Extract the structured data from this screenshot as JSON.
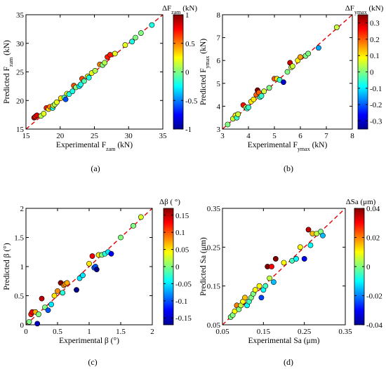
{
  "colorscale": [
    "#00008f",
    "#0000ff",
    "#0080ff",
    "#00ffff",
    "#80ff80",
    "#ffff00",
    "#ff8000",
    "#ff0000",
    "#800000"
  ],
  "chart_data": [
    {
      "type": "scatter",
      "panel_label": "(a)",
      "xlabel": "Experimental  F_zam (kN)",
      "ylabel": "Predicted  F_zam (kN)",
      "xlim": [
        15,
        35
      ],
      "ylim": [
        15,
        35
      ],
      "xticks": [
        "15",
        "20",
        "25",
        "30",
        "35"
      ],
      "yticks": [
        "15",
        "20",
        "25",
        "30",
        "35"
      ],
      "colorbar": {
        "title": "ΔF_zam (kN)",
        "range": [
          -1,
          1
        ],
        "ticks": [
          "-1",
          "-0.5",
          "0",
          "0.5",
          "1"
        ]
      },
      "diagonal": true,
      "x": [
        16.2,
        16.4,
        16.6,
        17.2,
        17.6,
        18.0,
        18.3,
        18.5,
        18.9,
        19.0,
        19.2,
        19.5,
        20.1,
        20.6,
        20.8,
        21.0,
        21.3,
        21.8,
        22.0,
        22.3,
        22.8,
        23.0,
        23.2,
        23.5,
        24.0,
        24.2,
        24.6,
        25.1,
        25.8,
        26.2,
        26.5,
        26.9,
        27.3,
        28.0,
        29.5,
        30.5,
        31.0,
        31.8,
        33.4
      ],
      "y": [
        17.0,
        17.2,
        17.4,
        17.3,
        17.7,
        18.7,
        18.5,
        18.9,
        18.7,
        19.1,
        19.3,
        19.7,
        20.4,
        20.5,
        20.2,
        21.2,
        21.1,
        21.6,
        22.6,
        22.3,
        22.5,
        22.8,
        23.8,
        23.4,
        24.2,
        24.0,
        24.8,
        25.2,
        26.3,
        26.2,
        26.6,
        27.6,
        28.0,
        28.2,
        29.7,
        30.3,
        31.0,
        31.8,
        33.2
      ],
      "c": [
        0.9,
        0.7,
        0.8,
        0.1,
        0.2,
        0.7,
        0.3,
        0.5,
        -0.2,
        0.2,
        0.1,
        0.2,
        0.3,
        -0.1,
        -0.6,
        0.2,
        -0.2,
        -0.2,
        0.6,
        0.0,
        -0.3,
        -0.2,
        0.6,
        -0.1,
        0.2,
        -0.2,
        0.2,
        0.1,
        0.5,
        0.0,
        0.1,
        0.7,
        0.7,
        0.2,
        0.2,
        -0.2,
        0.0,
        0.0,
        -0.2
      ]
    },
    {
      "type": "scatter",
      "panel_label": "(b)",
      "xlabel": "Experimental  F_ymax (kN)",
      "ylabel": "Predicted  F_ymax (kN)",
      "xlim": [
        3,
        8
      ],
      "ylim": [
        3,
        8
      ],
      "xticks": [
        "3",
        "4",
        "5",
        "6",
        "7",
        "8"
      ],
      "yticks": [
        "3",
        "4",
        "5",
        "6",
        "7",
        "8"
      ],
      "colorbar": {
        "title": "ΔF_ymax (kN)",
        "range": [
          -0.35,
          0.35
        ],
        "ticks": [
          "-0.3",
          "-0.2",
          "-0.1",
          "0",
          "0.1",
          "0.2",
          "0.3"
        ]
      },
      "diagonal": true,
      "x": [
        3.2,
        3.4,
        3.5,
        3.55,
        3.6,
        3.8,
        3.9,
        3.95,
        4.0,
        4.1,
        4.2,
        4.3,
        4.35,
        4.4,
        4.45,
        4.5,
        4.6,
        4.8,
        5.0,
        5.1,
        5.2,
        5.35,
        5.5,
        5.6,
        5.65,
        5.7,
        5.9,
        6.0,
        6.2,
        6.3,
        6.7,
        7.4
      ],
      "y": [
        3.2,
        3.45,
        3.6,
        3.5,
        3.65,
        4.05,
        3.95,
        3.9,
        3.95,
        4.2,
        4.3,
        4.5,
        4.7,
        4.6,
        4.4,
        4.45,
        4.65,
        4.8,
        5.2,
        5.2,
        5.15,
        5.05,
        5.5,
        5.9,
        5.7,
        5.75,
        6.0,
        6.15,
        6.2,
        6.3,
        6.55,
        7.45
      ],
      "c": [
        0.0,
        0.05,
        0.1,
        -0.05,
        0.05,
        0.25,
        0.05,
        -0.05,
        -0.05,
        0.1,
        0.1,
        0.2,
        0.35,
        0.2,
        -0.05,
        -0.05,
        0.05,
        0.0,
        0.2,
        0.1,
        -0.05,
        -0.3,
        0.0,
        0.3,
        0.05,
        0.05,
        0.1,
        0.15,
        0.0,
        0.0,
        -0.15,
        0.05
      ]
    },
    {
      "type": "scatter",
      "panel_label": "(c)",
      "xlabel": "Experimental β (°)",
      "ylabel": "Predicted β (°)",
      "xlim": [
        0,
        2
      ],
      "ylim": [
        0,
        2
      ],
      "xticks": [
        "0",
        "0.5",
        "1",
        "1.5",
        "2"
      ],
      "yticks": [
        "0",
        "0.5",
        "1",
        "1.5",
        "2"
      ],
      "colorbar": {
        "title": "Δβ ( °)",
        "range": [
          -0.17,
          0.17
        ],
        "ticks": [
          "-0.15",
          "-0.1",
          "-0.05",
          "0",
          "0.05",
          "0.1",
          "0.15"
        ]
      },
      "diagonal": true,
      "x": [
        0.05,
        0.08,
        0.1,
        0.15,
        0.18,
        0.2,
        0.25,
        0.3,
        0.35,
        0.4,
        0.45,
        0.5,
        0.55,
        0.58,
        0.6,
        0.62,
        0.65,
        0.8,
        0.85,
        0.9,
        1.0,
        1.05,
        1.08,
        1.1,
        1.12,
        1.15,
        1.2,
        1.25,
        1.3,
        1.35,
        1.5,
        1.7,
        1.82
      ],
      "y": [
        0.05,
        0.18,
        0.22,
        0.22,
        0.02,
        0.18,
        0.45,
        0.3,
        0.25,
        0.35,
        0.5,
        0.58,
        0.72,
        0.55,
        0.68,
        0.7,
        0.72,
        0.6,
        0.8,
        0.85,
        1.05,
        1.18,
        0.98,
        1.0,
        0.95,
        1.2,
        1.2,
        1.22,
        1.25,
        1.22,
        1.5,
        1.7,
        1.85
      ],
      "c": [
        0.0,
        0.12,
        0.13,
        0.07,
        -0.15,
        0.0,
        0.15,
        0.0,
        -0.1,
        -0.05,
        0.05,
        0.08,
        0.17,
        -0.03,
        0.08,
        0.08,
        0.07,
        -0.2,
        -0.05,
        -0.05,
        0.05,
        0.13,
        -0.1,
        -0.1,
        -0.17,
        0.05,
        0.0,
        -0.03,
        -0.05,
        -0.13,
        0.0,
        0.0,
        0.03
      ]
    },
    {
      "type": "scatter",
      "panel_label": "(d)",
      "xlabel": "Experimental Sa (μm)",
      "ylabel": "Predicted Sa (μm)",
      "xlim": [
        0.05,
        0.35
      ],
      "ylim": [
        0.05,
        0.35
      ],
      "xticks": [
        "0.05",
        "0.15",
        "0.25",
        "0.35"
      ],
      "yticks": [
        "0.05",
        "0.15",
        "0.25",
        "0.35"
      ],
      "colorbar": {
        "title": "ΔSa (μm)",
        "range": [
          -0.04,
          0.04
        ],
        "ticks": [
          "-0.04",
          "-0.02",
          "0",
          "0.02",
          "0.04"
        ]
      },
      "diagonal": true,
      "x": [
        0.07,
        0.075,
        0.08,
        0.085,
        0.09,
        0.095,
        0.1,
        0.105,
        0.11,
        0.115,
        0.12,
        0.125,
        0.13,
        0.14,
        0.145,
        0.15,
        0.155,
        0.16,
        0.165,
        0.17,
        0.175,
        0.18,
        0.2,
        0.22,
        0.23,
        0.24,
        0.25,
        0.26,
        0.265,
        0.27,
        0.28,
        0.29,
        0.295
      ],
      "y": [
        0.07,
        0.075,
        0.085,
        0.1,
        0.09,
        0.1,
        0.11,
        0.12,
        0.1,
        0.11,
        0.12,
        0.13,
        0.14,
        0.15,
        0.12,
        0.14,
        0.15,
        0.2,
        0.17,
        0.2,
        0.16,
        0.22,
        0.21,
        0.215,
        0.22,
        0.25,
        0.22,
        0.295,
        0.255,
        0.285,
        0.285,
        0.29,
        0.28
      ],
      "c": [
        0.0,
        0.0,
        0.01,
        0.02,
        0.0,
        0.005,
        0.01,
        0.015,
        -0.01,
        -0.005,
        0.0,
        0.0,
        0.01,
        0.01,
        -0.025,
        -0.01,
        -0.005,
        0.04,
        0.005,
        0.03,
        -0.015,
        0.04,
        0.01,
        -0.005,
        -0.01,
        0.01,
        -0.03,
        0.035,
        -0.01,
        0.015,
        0.005,
        0.0,
        -0.015
      ]
    }
  ]
}
